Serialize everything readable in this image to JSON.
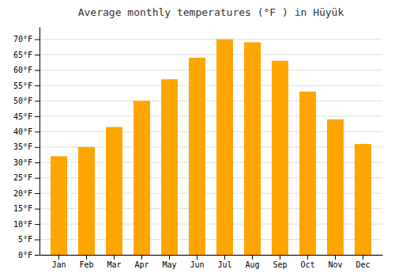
{
  "chart_data": {
    "type": "bar",
    "title": "Average monthly temperatures (°F ) in Hüyük",
    "categories": [
      "Jan",
      "Feb",
      "Mar",
      "Apr",
      "May",
      "Jun",
      "Jul",
      "Aug",
      "Sep",
      "Oct",
      "Nov",
      "Dec"
    ],
    "values": [
      32.0,
      35.0,
      41.5,
      50.0,
      57.0,
      64.0,
      70.0,
      69.0,
      63.0,
      53.0,
      44.0,
      36.0
    ],
    "color": "#FFA500",
    "ylim": [
      0,
      74
    ],
    "yticks": [
      {
        "value": 0,
        "label": "0°F"
      },
      {
        "value": 5,
        "label": "5°F"
      },
      {
        "value": 10,
        "label": "10°F"
      },
      {
        "value": 15,
        "label": "15°F"
      },
      {
        "value": 20,
        "label": "20°F"
      },
      {
        "value": 25,
        "label": "25°F"
      },
      {
        "value": 30,
        "label": "30°F"
      },
      {
        "value": 35,
        "label": "35°F"
      },
      {
        "value": 40,
        "label": "40°F"
      },
      {
        "value": 45,
        "label": "45°F"
      },
      {
        "value": 50,
        "label": "50°F"
      },
      {
        "value": 55,
        "label": "55°F"
      },
      {
        "value": 60,
        "label": "60°F"
      },
      {
        "value": 65,
        "label": "65°F"
      },
      {
        "value": 70,
        "label": "70°F"
      }
    ],
    "grid": true
  }
}
